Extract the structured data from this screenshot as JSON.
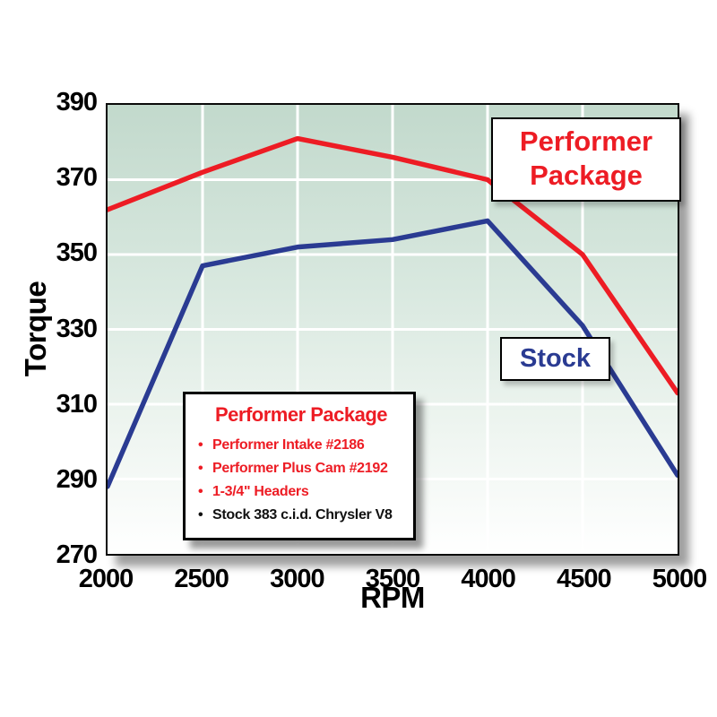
{
  "page": {
    "background": "#ffffff"
  },
  "axes": {
    "y_label": "Torque",
    "x_label": "RPM",
    "y_ticks": [
      270,
      290,
      310,
      330,
      350,
      370,
      390
    ],
    "x_ticks": [
      2000,
      2500,
      3000,
      3500,
      4000,
      4500,
      5000
    ]
  },
  "chart_data": {
    "type": "line",
    "title": "",
    "xlabel": "RPM",
    "ylabel": "Torque",
    "xlim": [
      2000,
      5000
    ],
    "ylim": [
      270,
      390
    ],
    "grid": true,
    "gridline_color": "#ffffff",
    "plot_background_gradient": [
      "#c2d9cc",
      "#ffffff"
    ],
    "x": [
      2000,
      2500,
      3000,
      3500,
      4000,
      4500,
      5000
    ],
    "series": [
      {
        "name": "Performer Package",
        "color": "#ed1c24",
        "values": [
          362,
          372,
          381,
          376,
          370,
          350,
          313
        ]
      },
      {
        "name": "Stock",
        "color": "#2a3b92",
        "values": [
          288,
          347,
          352,
          354,
          359,
          331,
          291
        ]
      }
    ],
    "legend_position": "inside-left-bottom"
  },
  "annotations": {
    "performer_label": {
      "line1": "Performer",
      "line2": "Package",
      "color": "#ed1c24"
    },
    "stock_label": {
      "text": "Stock",
      "color": "#2a3b92"
    }
  },
  "legend": {
    "title": "Performer Package",
    "title_color": "#ed1c24",
    "items": [
      {
        "text": "Performer Intake #2186",
        "color": "#ed1c24"
      },
      {
        "text": "Performer Plus Cam #2192",
        "color": "#ed1c24"
      },
      {
        "text": "1-3/4\" Headers",
        "color": "#ed1c24"
      },
      {
        "text": "Stock 383 c.i.d. Chrysler V8",
        "color": "#111111"
      }
    ]
  }
}
